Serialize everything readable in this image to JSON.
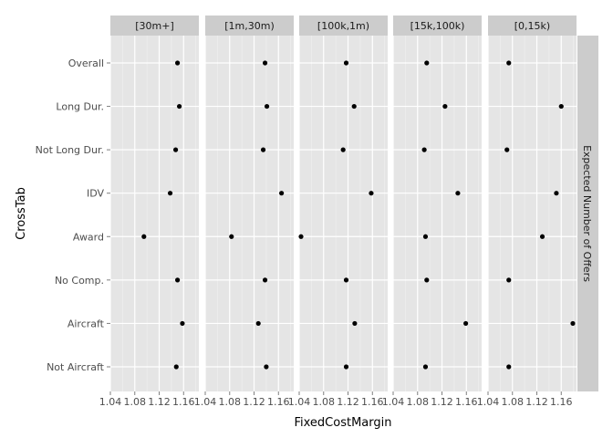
{
  "chart_data": {
    "type": "scatter",
    "xlabel": "FixedCostMargin",
    "ylabel": "CrossTab",
    "facet_label": "Expected Number of Offers",
    "xlim": [
      1.04,
      1.185
    ],
    "x_ticks": [
      1.04,
      1.08,
      1.12,
      1.16
    ],
    "x_tick_labels": [
      "1.04",
      "1.08",
      "1.12",
      "1.16"
    ],
    "categories": [
      "Overall",
      "Long Dur.",
      "Not Long Dur.",
      "IDV",
      "Award",
      "No Comp.",
      "Aircraft",
      "Not Aircraft"
    ],
    "grid": true,
    "legend": "none",
    "colors": {
      "panel_bg": "#e5e5e5",
      "grid_major": "#ffffff",
      "grid_minor": "#f2f2f2",
      "strip_bg": "#cccccc",
      "point": "#000000"
    },
    "panels": [
      {
        "label": "[30m+]",
        "values": [
          1.15,
          1.153,
          1.147,
          1.138,
          1.095,
          1.15,
          1.158,
          1.148
        ]
      },
      {
        "label": "[1m,30m)",
        "values": [
          1.138,
          1.141,
          1.135,
          1.165,
          1.083,
          1.138,
          1.127,
          1.14
        ]
      },
      {
        "label": "[100k,1m)",
        "values": [
          1.117,
          1.13,
          1.112,
          1.158,
          1.043,
          1.117,
          1.131,
          1.117
        ]
      },
      {
        "label": "[15k,100k)",
        "values": [
          1.095,
          1.125,
          1.091,
          1.146,
          1.093,
          1.095,
          1.159,
          1.093
        ]
      },
      {
        "label": "[0,15k)",
        "values": [
          1.074,
          1.16,
          1.071,
          1.152,
          1.129,
          1.074,
          1.179,
          1.074
        ]
      }
    ]
  }
}
